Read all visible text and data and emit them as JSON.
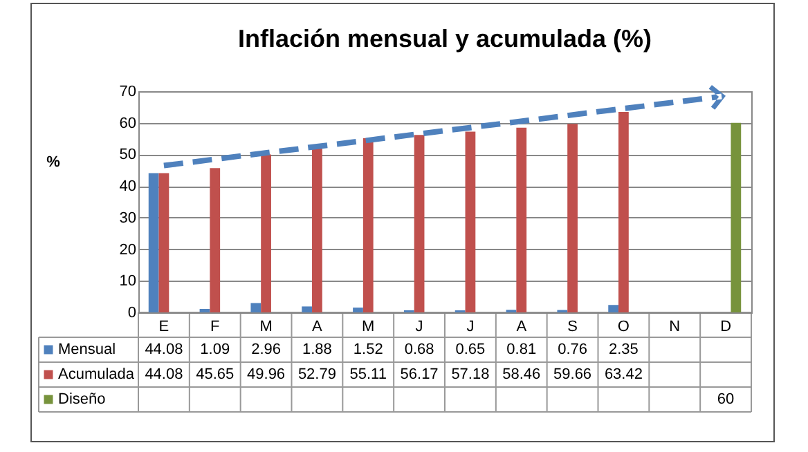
{
  "chart_data": {
    "type": "bar",
    "title": "Inflación mensual y acumulada (%)",
    "ylabel": "%",
    "categories": [
      "E",
      "F",
      "M",
      "A",
      "M",
      "J",
      "J",
      "A",
      "S",
      "O",
      "N",
      "D"
    ],
    "series": [
      {
        "name": "Mensual",
        "color": "#4f81bd",
        "values": [
          44.08,
          1.09,
          2.96,
          1.88,
          1.52,
          0.68,
          0.65,
          0.81,
          0.76,
          2.35,
          null,
          null
        ],
        "value_labels": [
          "44.08",
          "1.09",
          "2.96",
          "1.88",
          "1.52",
          "0.68",
          "0.65",
          "0.81",
          "0.76",
          "2.35",
          null,
          null
        ]
      },
      {
        "name": "Acumulada",
        "color": "#c0504d",
        "values": [
          44.08,
          45.65,
          49.96,
          52.79,
          55.11,
          56.17,
          57.18,
          58.46,
          59.66,
          63.42,
          null,
          null
        ],
        "value_labels": [
          "44.08",
          "45.65",
          "49.96",
          "52.79",
          "55.11",
          "56.17",
          "57.18",
          "58.46",
          "59.66",
          "63.42",
          null,
          null
        ]
      },
      {
        "name": "Diseño",
        "color": "#77933c",
        "values": [
          null,
          null,
          null,
          null,
          null,
          null,
          null,
          null,
          null,
          null,
          null,
          60
        ],
        "value_labels": [
          null,
          null,
          null,
          null,
          null,
          null,
          null,
          null,
          null,
          null,
          null,
          "60"
        ]
      }
    ],
    "ylim": [
      0,
      70
    ],
    "yticks": [
      0,
      10,
      20,
      30,
      40,
      50,
      60,
      70
    ],
    "grid": "y",
    "legend": "bottom"
  }
}
